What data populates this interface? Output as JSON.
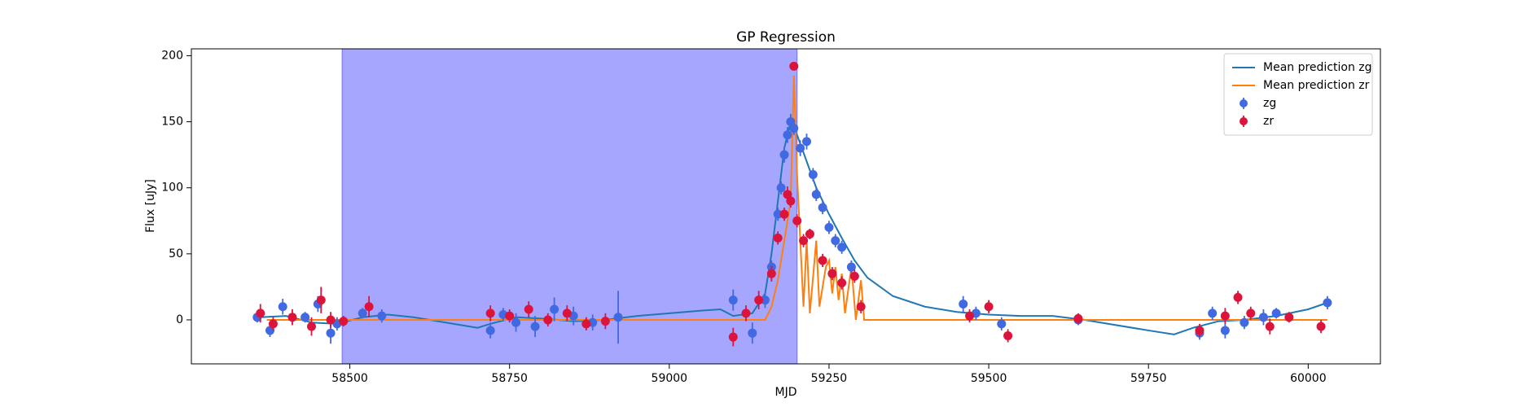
{
  "chart_data": {
    "type": "errorbar",
    "title": "GP Regression",
    "xlabel": "MJD",
    "ylabel": "Flux [uJy]",
    "xlim": [
      58252,
      60113
    ],
    "ylim": [
      -33.3,
      205.2
    ],
    "xticks": [
      58500,
      58750,
      59000,
      59250,
      59500,
      59750,
      60000
    ],
    "yticks": [
      0,
      50,
      100,
      150,
      200
    ],
    "span": [
      58488,
      59200
    ],
    "span_color": "#a6a6ff",
    "legend": "upper right",
    "grid": false,
    "series": [
      {
        "name": "Mean prediction zg",
        "style": "line",
        "color": "#1f77b4",
        "x": [
          58360,
          58400,
          58440,
          58480,
          58520,
          58560,
          58600,
          58650,
          58700,
          58720,
          58760,
          58800,
          58850,
          58900,
          58950,
          59000,
          59050,
          59080,
          59100,
          59130,
          59150,
          59160,
          59170,
          59180,
          59190,
          59200,
          59215,
          59230,
          59250,
          59270,
          59290,
          59310,
          59350,
          59400,
          59450,
          59500,
          59550,
          59600,
          59650,
          59700,
          59750,
          59790,
          59820,
          59860,
          59900,
          59950,
          60000,
          60030
        ],
        "values": [
          2,
          3,
          -2,
          -3,
          2,
          4,
          2,
          -2,
          -6,
          -3,
          2,
          1,
          -1,
          0,
          3,
          5,
          7,
          8,
          3,
          5,
          20,
          50,
          90,
          130,
          150,
          140,
          120,
          100,
          80,
          62,
          45,
          32,
          18,
          10,
          6,
          4,
          3,
          3,
          0,
          -4,
          -8,
          -11,
          -6,
          -1,
          0,
          3,
          8,
          13
        ]
      },
      {
        "name": "Mean prediction zr",
        "style": "line",
        "color": "#ff7f0e",
        "x": [
          58370,
          59150,
          59160,
          59170,
          59180,
          59190,
          59195,
          59200,
          59205,
          59210,
          59215,
          59220,
          59230,
          59235,
          59245,
          59250,
          59255,
          59260,
          59265,
          59270,
          59275,
          59285,
          59292,
          59300,
          59305,
          60030
        ],
        "values": [
          0,
          0,
          10,
          30,
          60,
          90,
          185,
          110,
          60,
          10,
          60,
          5,
          60,
          10,
          40,
          45,
          20,
          40,
          15,
          35,
          5,
          40,
          0,
          30,
          0,
          0
        ]
      },
      {
        "name": "zg",
        "style": "points",
        "color": "#4169e1",
        "x": [
          58355,
          58375,
          58395,
          58430,
          58450,
          58470,
          58480,
          58520,
          58550,
          58720,
          58740,
          58760,
          58790,
          58820,
          58850,
          58880,
          58920,
          59100,
          59130,
          59150,
          59160,
          59170,
          59175,
          59180,
          59185,
          59190,
          59195,
          59205,
          59215,
          59225,
          59230,
          59240,
          59250,
          59260,
          59270,
          59285,
          59460,
          59480,
          59520,
          59640,
          59830,
          59850,
          59870,
          59900,
          59930,
          59950,
          60030
        ],
        "values": [
          2,
          -8,
          10,
          2,
          12,
          -10,
          -3,
          5,
          3,
          -8,
          4,
          -2,
          -5,
          8,
          3,
          -2,
          2,
          15,
          -10,
          15,
          40,
          80,
          100,
          125,
          140,
          150,
          145,
          130,
          135,
          110,
          95,
          85,
          70,
          60,
          55,
          40,
          12,
          5,
          -3,
          0,
          -10,
          5,
          -8,
          -2,
          2,
          5,
          13
        ],
        "errors": [
          4,
          5,
          6,
          4,
          6,
          8,
          5,
          4,
          5,
          6,
          5,
          7,
          8,
          9,
          7,
          6,
          20,
          8,
          8,
          6,
          5,
          5,
          5,
          6,
          6,
          6,
          5,
          6,
          6,
          5,
          5,
          5,
          5,
          5,
          5,
          5,
          6,
          5,
          5,
          4,
          5,
          5,
          6,
          5,
          6,
          4,
          5
        ]
      },
      {
        "name": "zr",
        "style": "points",
        "color": "#dc143c",
        "x": [
          58360,
          58380,
          58410,
          58440,
          58455,
          58470,
          58490,
          58530,
          58720,
          58750,
          58780,
          58810,
          58840,
          58870,
          58900,
          59100,
          59120,
          59140,
          59160,
          59170,
          59180,
          59185,
          59190,
          59195,
          59200,
          59210,
          59220,
          59240,
          59255,
          59270,
          59290,
          59300,
          59470,
          59500,
          59530,
          59640,
          59830,
          59870,
          59890,
          59910,
          59940,
          59970,
          60020
        ],
        "values": [
          5,
          -3,
          2,
          -5,
          15,
          0,
          -1,
          10,
          5,
          3,
          8,
          0,
          5,
          -3,
          -1,
          -13,
          5,
          15,
          35,
          62,
          80,
          95,
          90,
          192,
          75,
          60,
          65,
          45,
          35,
          28,
          33,
          10,
          3,
          10,
          -12,
          1,
          -8,
          3,
          17,
          5,
          -5,
          2,
          -5
        ],
        "errors": [
          7,
          5,
          6,
          7,
          10,
          6,
          4,
          8,
          6,
          5,
          6,
          5,
          6,
          5,
          6,
          7,
          6,
          7,
          6,
          5,
          5,
          6,
          5,
          3,
          5,
          5,
          4,
          5,
          5,
          5,
          5,
          5,
          5,
          5,
          5,
          4,
          5,
          6,
          5,
          5,
          6,
          4,
          5
        ]
      }
    ]
  }
}
